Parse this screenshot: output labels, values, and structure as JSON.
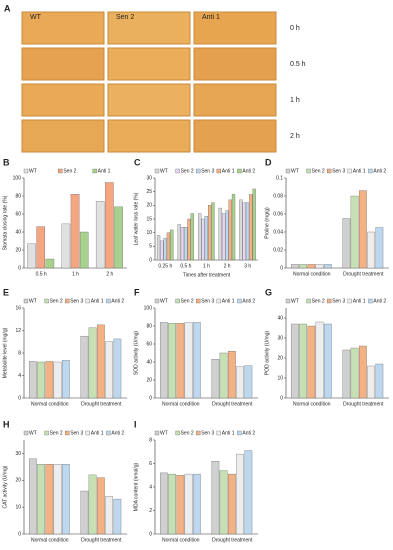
{
  "panel_a": {
    "label": "A",
    "columns": [
      "WT",
      "Sen 2",
      "Anti 1"
    ],
    "rows": [
      "0 h",
      "0.5 h",
      "1 h",
      "2 h"
    ]
  },
  "chart_data": [
    {
      "type": "bar",
      "label": "B",
      "ylabel": "Stomata closing rate (%)",
      "categories": [
        "0.5 h",
        "1 h",
        "2 h"
      ],
      "series": [
        {
          "name": "WT",
          "color": "#e0e0e0",
          "values": [
            27,
            49,
            74
          ]
        },
        {
          "name": "Sen 2",
          "color": "#f4a582",
          "values": [
            46,
            82,
            95
          ]
        },
        {
          "name": "Anti 1",
          "color": "#a9d18e",
          "values": [
            10,
            40,
            68
          ]
        }
      ],
      "ylim": [
        0,
        100
      ],
      "yticks": [
        0,
        20,
        40,
        60,
        80,
        100
      ]
    },
    {
      "type": "bar",
      "label": "C",
      "ylabel": "Leaf water loss rate (%)",
      "xlabel": "Times after treatment",
      "categories": [
        "0.25 h",
        "0.5 h",
        "1 h",
        "2 h",
        "3 h"
      ],
      "series": [
        {
          "name": "WT",
          "color": "#d9d9d9",
          "values": [
            9,
            13,
            17,
            19,
            22
          ]
        },
        {
          "name": "Sen 2",
          "color": "#e6d6f0",
          "values": [
            7,
            12,
            15,
            17,
            21
          ]
        },
        {
          "name": "Sen 3",
          "color": "#bdd7ee",
          "values": [
            8,
            12,
            16,
            18,
            21
          ]
        },
        {
          "name": "Anti 1",
          "color": "#f4b183",
          "values": [
            10,
            15,
            20,
            22,
            24
          ]
        },
        {
          "name": "Anti 2",
          "color": "#a9d18e",
          "values": [
            11,
            17,
            21,
            24,
            26
          ]
        }
      ],
      "ylim": [
        0,
        30
      ],
      "yticks": [
        0,
        5,
        10,
        15,
        20,
        25,
        30
      ]
    },
    {
      "type": "bar",
      "label": "D",
      "ylabel": "Proline (mg/g)",
      "categories": [
        "Normal condition",
        "Drought treatment"
      ],
      "series": [
        {
          "name": "WT",
          "color": "#d0d0d0",
          "values": [
            0.004,
            0.055
          ]
        },
        {
          "name": "Sen 2",
          "color": "#c6e0b4",
          "values": [
            0.004,
            0.08
          ]
        },
        {
          "name": "Sen 3",
          "color": "#f4b183",
          "values": [
            0.004,
            0.086
          ]
        },
        {
          "name": "Anti 1",
          "color": "#ededed",
          "values": [
            0.004,
            0.04
          ]
        },
        {
          "name": "Anti 2",
          "color": "#bdd7ee",
          "values": [
            0.004,
            0.045
          ]
        }
      ],
      "ylim": [
        0,
        0.1
      ],
      "yticks": [
        0,
        0.02,
        0.04,
        0.06,
        0.08,
        0.1
      ]
    },
    {
      "type": "bar",
      "label": "E",
      "ylabel": "Metabolite level (mg/g)",
      "categories": [
        "Normal condition",
        "Drought treatment"
      ],
      "series": [
        {
          "name": "WT",
          "color": "#d0d0d0",
          "values": [
            6.5,
            11
          ]
        },
        {
          "name": "Sen 2",
          "color": "#c6e0b4",
          "values": [
            6.4,
            12.5
          ]
        },
        {
          "name": "Sen 3",
          "color": "#f4b183",
          "values": [
            6.5,
            13
          ]
        },
        {
          "name": "Anti 1",
          "color": "#ededed",
          "values": [
            6.4,
            10
          ]
        },
        {
          "name": "Anti 2",
          "color": "#bdd7ee",
          "values": [
            6.7,
            10.5
          ]
        }
      ],
      "ylim": [
        0,
        16
      ],
      "yticks": [
        0,
        4,
        8,
        12,
        16
      ]
    },
    {
      "type": "bar",
      "label": "F",
      "ylabel": "SOD activity (U/mg)",
      "categories": [
        "Normal condition",
        "Drought treatment"
      ],
      "series": [
        {
          "name": "WT",
          "color": "#d0d0d0",
          "values": [
            84,
            43
          ]
        },
        {
          "name": "Sen 2",
          "color": "#c6e0b4",
          "values": [
            83,
            50
          ]
        },
        {
          "name": "Sen 3",
          "color": "#f4b183",
          "values": [
            83,
            52
          ]
        },
        {
          "name": "Anti 1",
          "color": "#ededed",
          "values": [
            84,
            35
          ]
        },
        {
          "name": "Anti 2",
          "color": "#bdd7ee",
          "values": [
            84,
            36
          ]
        }
      ],
      "ylim": [
        0,
        100
      ],
      "yticks": [
        0,
        20,
        40,
        60,
        80,
        100
      ]
    },
    {
      "type": "bar",
      "label": "G",
      "ylabel": "POD activity (U/mg)",
      "categories": [
        "Normal condition",
        "Drought treatment"
      ],
      "series": [
        {
          "name": "WT",
          "color": "#d0d0d0",
          "values": [
            37,
            24
          ]
        },
        {
          "name": "Sen 2",
          "color": "#c6e0b4",
          "values": [
            37,
            25
          ]
        },
        {
          "name": "Sen 3",
          "color": "#f4b183",
          "values": [
            36,
            26
          ]
        },
        {
          "name": "Anti 1",
          "color": "#ededed",
          "values": [
            38,
            16
          ]
        },
        {
          "name": "Anti 2",
          "color": "#bdd7ee",
          "values": [
            37,
            17
          ]
        }
      ],
      "ylim": [
        0,
        45
      ],
      "yticks": [
        0,
        10,
        20,
        30,
        40
      ]
    },
    {
      "type": "bar",
      "label": "H",
      "ylabel": "CAT activity (U/mg)",
      "categories": [
        "Normal condition",
        "Drought treatment"
      ],
      "series": [
        {
          "name": "WT",
          "color": "#d0d0d0",
          "values": [
            28,
            16
          ]
        },
        {
          "name": "Sen 2",
          "color": "#c6e0b4",
          "values": [
            26,
            22
          ]
        },
        {
          "name": "Sen 3",
          "color": "#f4b183",
          "values": [
            26,
            21
          ]
        },
        {
          "name": "Anti 1",
          "color": "#ededed",
          "values": [
            26,
            14
          ]
        },
        {
          "name": "Anti 2",
          "color": "#bdd7ee",
          "values": [
            26,
            13
          ]
        }
      ],
      "ylim": [
        0,
        35
      ],
      "yticks": [
        0,
        10,
        20,
        30
      ]
    },
    {
      "type": "bar",
      "label": "I",
      "ylabel": "MDA content (nmol/g)",
      "categories": [
        "Normal condition",
        "Drought treatment"
      ],
      "series": [
        {
          "name": "WT",
          "color": "#d0d0d0",
          "values": [
            5.2,
            6.2
          ]
        },
        {
          "name": "Sen 2",
          "color": "#c6e0b4",
          "values": [
            5.1,
            5.4
          ]
        },
        {
          "name": "Sen 3",
          "color": "#f4b183",
          "values": [
            5,
            5.1
          ]
        },
        {
          "name": "Anti 1",
          "color": "#ededed",
          "values": [
            5.1,
            6.8
          ]
        },
        {
          "name": "Anti 2",
          "color": "#bdd7ee",
          "values": [
            5.1,
            7.1
          ]
        }
      ],
      "ylim": [
        0,
        8
      ],
      "yticks": [
        0,
        2,
        4,
        6,
        8
      ]
    }
  ]
}
